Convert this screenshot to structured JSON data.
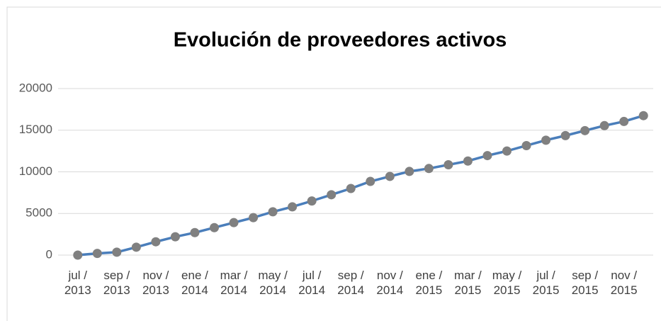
{
  "chart_data": {
    "type": "line",
    "title": "Evolución de proveedores activos",
    "categories": [
      "jul / 2013",
      null,
      "sep / 2013",
      null,
      "nov / 2013",
      null,
      "ene / 2014",
      null,
      "mar / 2014",
      null,
      "may / 2014",
      null,
      "jul / 2014",
      null,
      "sep / 2014",
      null,
      "nov / 2014",
      null,
      "ene / 2015",
      null,
      "mar / 2015",
      null,
      "may / 2015",
      null,
      "jul / 2015",
      null,
      "sep / 2015",
      null,
      "nov / 2015",
      null
    ],
    "series": [
      {
        "name": "Proveedores activos",
        "color": "#4a7ebb",
        "marker_color": "#808080",
        "values": [
          0,
          200,
          350,
          950,
          1600,
          2200,
          2700,
          3300,
          3900,
          4500,
          5200,
          5800,
          6500,
          7250,
          8000,
          8850,
          9450,
          10050,
          10400,
          10850,
          11300,
          11950,
          12500,
          13150,
          13800,
          14350,
          14950,
          15550,
          16050,
          16750
        ]
      }
    ],
    "ylim": [
      0,
      20000
    ],
    "yticks": [
      0,
      5000,
      10000,
      15000,
      20000
    ],
    "grid": true,
    "legend": false
  }
}
